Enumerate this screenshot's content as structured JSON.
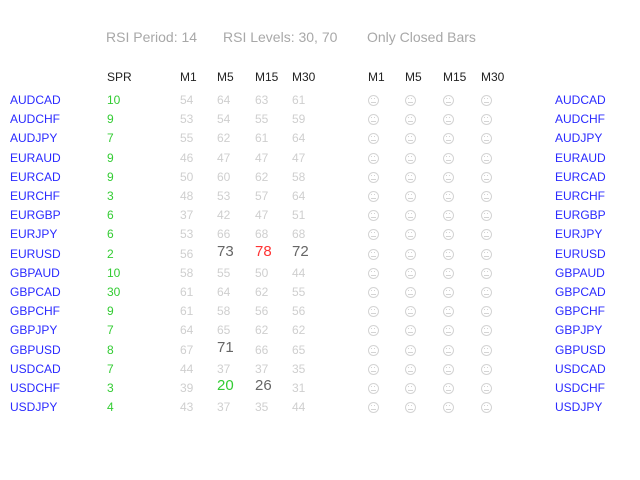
{
  "header": {
    "rsi_period": "RSI Period: 14",
    "rsi_levels": "RSI Levels: 30, 70",
    "mode": "Only Closed Bars"
  },
  "columns": {
    "spread": "SPR",
    "timeframes": [
      "M1",
      "M5",
      "M15",
      "M30"
    ],
    "signal_timeframes": [
      "M1",
      "M5",
      "M15",
      "M30"
    ]
  },
  "colors": {
    "pair": "#2a2aff",
    "spread": "#33cc33",
    "rsi_normal": "#cfcfcf",
    "rsi_emphasis": "#666666",
    "rsi_overbought": "#ff3333",
    "rsi_oversold": "#33cc33"
  },
  "signal_icon": "neutral-face-icon",
  "rows": [
    {
      "pair": "AUDCAD",
      "spread": "10",
      "rsi": [
        "54",
        "64",
        "63",
        "61"
      ],
      "state": [
        null,
        null,
        null,
        null
      ]
    },
    {
      "pair": "AUDCHF",
      "spread": "9",
      "rsi": [
        "53",
        "54",
        "55",
        "59"
      ],
      "state": [
        null,
        null,
        null,
        null
      ]
    },
    {
      "pair": "AUDJPY",
      "spread": "7",
      "rsi": [
        "55",
        "62",
        "61",
        "64"
      ],
      "state": [
        null,
        null,
        null,
        null
      ]
    },
    {
      "pair": "EURAUD",
      "spread": "9",
      "rsi": [
        "46",
        "47",
        "47",
        "47"
      ],
      "state": [
        null,
        null,
        null,
        null
      ]
    },
    {
      "pair": "EURCAD",
      "spread": "9",
      "rsi": [
        "50",
        "60",
        "62",
        "58"
      ],
      "state": [
        null,
        null,
        null,
        null
      ]
    },
    {
      "pair": "EURCHF",
      "spread": "3",
      "rsi": [
        "48",
        "53",
        "57",
        "64"
      ],
      "state": [
        null,
        null,
        null,
        null
      ]
    },
    {
      "pair": "EURGBP",
      "spread": "6",
      "rsi": [
        "37",
        "42",
        "47",
        "51"
      ],
      "state": [
        null,
        null,
        null,
        null
      ]
    },
    {
      "pair": "EURJPY",
      "spread": "6",
      "rsi": [
        "53",
        "66",
        "68",
        "68"
      ],
      "state": [
        null,
        null,
        null,
        null
      ]
    },
    {
      "pair": "EURUSD",
      "spread": "2",
      "rsi": [
        "56",
        "73",
        "78",
        "72"
      ],
      "state": [
        null,
        "emphasis",
        "overbought",
        "emphasis"
      ]
    },
    {
      "pair": "GBPAUD",
      "spread": "10",
      "rsi": [
        "58",
        "55",
        "50",
        "44"
      ],
      "state": [
        null,
        null,
        null,
        null
      ]
    },
    {
      "pair": "GBPCAD",
      "spread": "30",
      "rsi": [
        "61",
        "64",
        "62",
        "55"
      ],
      "state": [
        null,
        null,
        null,
        null
      ]
    },
    {
      "pair": "GBPCHF",
      "spread": "9",
      "rsi": [
        "61",
        "58",
        "56",
        "56"
      ],
      "state": [
        null,
        null,
        null,
        null
      ]
    },
    {
      "pair": "GBPJPY",
      "spread": "7",
      "rsi": [
        "64",
        "65",
        "62",
        "62"
      ],
      "state": [
        null,
        null,
        null,
        null
      ]
    },
    {
      "pair": "GBPUSD",
      "spread": "8",
      "rsi": [
        "67",
        "71",
        "66",
        "65"
      ],
      "state": [
        null,
        "emphasis",
        null,
        null
      ]
    },
    {
      "pair": "USDCAD",
      "spread": "7",
      "rsi": [
        "44",
        "37",
        "37",
        "35"
      ],
      "state": [
        null,
        null,
        null,
        null
      ]
    },
    {
      "pair": "USDCHF",
      "spread": "3",
      "rsi": [
        "39",
        "20",
        "26",
        "31"
      ],
      "state": [
        null,
        "oversold",
        "emphasis",
        null
      ]
    },
    {
      "pair": "USDJPY",
      "spread": "4",
      "rsi": [
        "43",
        "37",
        "35",
        "44"
      ],
      "state": [
        null,
        null,
        null,
        null
      ]
    }
  ]
}
